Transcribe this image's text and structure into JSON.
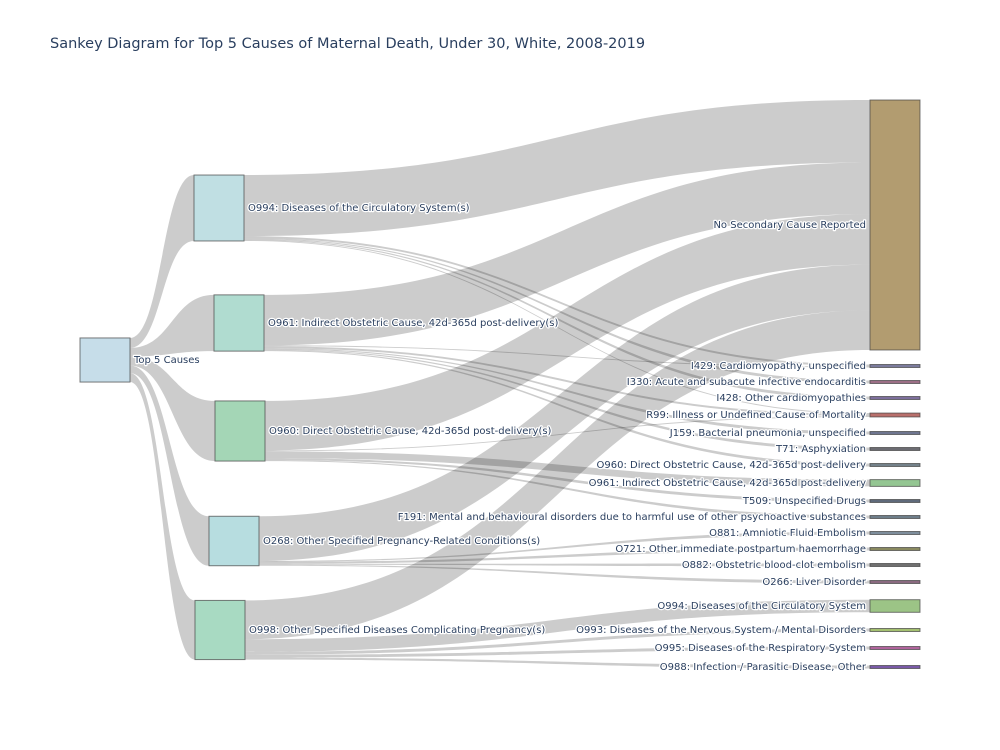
{
  "title": "Sankey Diagram for Top 5 Causes of Maternal Death, Under 30, White, 2008-2019",
  "chart_data": {
    "type": "sankey",
    "nodes": [
      {
        "id": "root",
        "label": "Top 5 Causes",
        "color": "#c6dde9"
      },
      {
        "id": "o994p",
        "label": "O994: Diseases of the Circulatory System(s)",
        "color": "#c0dfe3"
      },
      {
        "id": "o961p",
        "label": "O961: Indirect Obstetric Cause, 42d-365d post-delivery(s)",
        "color": "#b0dcd0"
      },
      {
        "id": "o960p",
        "label": "O960: Direct Obstetric Cause, 42d-365d post-delivery(s)",
        "color": "#a4d6b6"
      },
      {
        "id": "o268p",
        "label": "O268: Other Specified Pregnancy-Related Conditions(s)",
        "color": "#b7dde0"
      },
      {
        "id": "o998p",
        "label": "O998: Other Specified Diseases Complicating Pregnancy(s)",
        "color": "#a8dac2"
      },
      {
        "id": "none",
        "label": "No Secondary Cause Reported",
        "color": "#b29c70"
      },
      {
        "id": "i429",
        "label": "I429: Cardiomyopathy, unspecified",
        "color": "#7b7b9c"
      },
      {
        "id": "i330",
        "label": "I330: Acute and subacute infective endocarditis",
        "color": "#9c6f86"
      },
      {
        "id": "i428",
        "label": "I428: Other cardiomyopathies",
        "color": "#7d6f9c"
      },
      {
        "id": "r99",
        "label": "R99: Illness or Undefined Cause of Mortality",
        "color": "#b9706c"
      },
      {
        "id": "j159",
        "label": "J159: Bacterial pneumonia, unspecified",
        "color": "#6f7690"
      },
      {
        "id": "t71",
        "label": "T71: Asphyxiation",
        "color": "#6c6c72"
      },
      {
        "id": "o960s",
        "label": "O960: Direct Obstetric Cause, 42d-365d post-delivery",
        "color": "#74828a"
      },
      {
        "id": "o961s",
        "label": "O961: Indirect Obstetric Cause, 42d-365d post-delivery",
        "color": "#94c692"
      },
      {
        "id": "t509",
        "label": "T509: Unspecified Drugs",
        "color": "#5f6a7a"
      },
      {
        "id": "f191",
        "label": "F191: Mental and behavioural disorders due to harmful use of other psychoactive substances",
        "color": "#6e7e8a"
      },
      {
        "id": "o881",
        "label": "O881: Amniotic Fluid Embolism",
        "color": "#7e8e9c"
      },
      {
        "id": "o721",
        "label": "O721: Other immediate postpartum haemorrhage",
        "color": "#8a8a60"
      },
      {
        "id": "o882",
        "label": "O882: Obstetric blood-clot embolism",
        "color": "#707070"
      },
      {
        "id": "o266",
        "label": "O266: Liver Disorder",
        "color": "#8a6a80"
      },
      {
        "id": "o994s",
        "label": "O994: Diseases of the Circulatory System",
        "color": "#9cc486"
      },
      {
        "id": "o993s",
        "label": "O993: Diseases of the Nervous System / Mental Disorders",
        "color": "#a4c070"
      },
      {
        "id": "o995s",
        "label": "O995: Diseases of the Respiratory System",
        "color": "#b0649c"
      },
      {
        "id": "o988s",
        "label": "O988: Infection / Parasitic Disease, Other",
        "color": "#7a5aa8"
      }
    ],
    "links": [
      {
        "source": "root",
        "target": "o994p",
        "value": 68
      },
      {
        "source": "root",
        "target": "o961p",
        "value": 58
      },
      {
        "source": "root",
        "target": "o960p",
        "value": 62
      },
      {
        "source": "root",
        "target": "o268p",
        "value": 51
      },
      {
        "source": "root",
        "target": "o998p",
        "value": 61
      },
      {
        "source": "o994p",
        "target": "none",
        "value": 63
      },
      {
        "source": "o994p",
        "target": "i429",
        "value": 2
      },
      {
        "source": "o994p",
        "target": "i330",
        "value": 1
      },
      {
        "source": "o994p",
        "target": "i428",
        "value": 1
      },
      {
        "source": "o994p",
        "target": "r99",
        "value": 1
      },
      {
        "source": "o961p",
        "target": "none",
        "value": 52
      },
      {
        "source": "o961p",
        "target": "i429",
        "value": 1
      },
      {
        "source": "o961p",
        "target": "r99",
        "value": 2
      },
      {
        "source": "o961p",
        "target": "j159",
        "value": 1
      },
      {
        "source": "o961p",
        "target": "t71",
        "value": 1
      },
      {
        "source": "o961p",
        "target": "o960s",
        "value": 1
      },
      {
        "source": "o960p",
        "target": "none",
        "value": 51
      },
      {
        "source": "o960p",
        "target": "r99",
        "value": 1
      },
      {
        "source": "o960p",
        "target": "o961s",
        "value": 7
      },
      {
        "source": "o960p",
        "target": "t509",
        "value": 2
      },
      {
        "source": "o960p",
        "target": "f191",
        "value": 1
      },
      {
        "source": "o268p",
        "target": "none",
        "value": 46
      },
      {
        "source": "o268p",
        "target": "o881",
        "value": 1
      },
      {
        "source": "o268p",
        "target": "o721",
        "value": 2
      },
      {
        "source": "o268p",
        "target": "o882",
        "value": 1
      },
      {
        "source": "o268p",
        "target": "o266",
        "value": 1
      },
      {
        "source": "o998p",
        "target": "none",
        "value": 40
      },
      {
        "source": "o998p",
        "target": "o994s",
        "value": 13
      },
      {
        "source": "o998p",
        "target": "o993s",
        "value": 3
      },
      {
        "source": "o998p",
        "target": "o995s",
        "value": 3
      },
      {
        "source": "o998p",
        "target": "o988s",
        "value": 2
      }
    ]
  }
}
